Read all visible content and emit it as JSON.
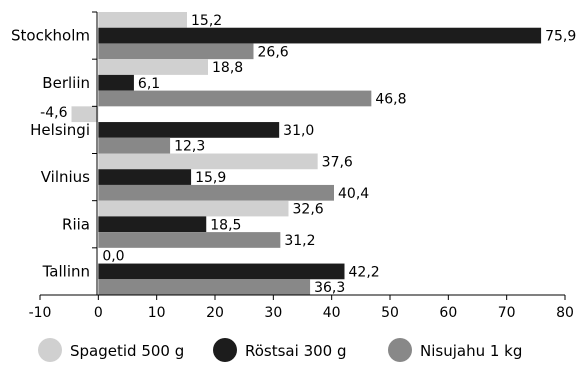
{
  "chart_data": {
    "type": "bar",
    "orientation": "horizontal",
    "categories": [
      "Stockholm",
      "Berliin",
      "Helsingi",
      "Vilnius",
      "Riia",
      "Tallinn"
    ],
    "series": [
      {
        "name": "Spagetid 500 g",
        "color": "#d0d0d0",
        "values": [
          15.2,
          18.8,
          -4.6,
          37.6,
          32.6,
          0.0
        ],
        "labels": [
          "15,2",
          "18,8",
          "-4,6",
          "37,6",
          "32,6",
          "0,0"
        ]
      },
      {
        "name": "Röstsai 300 g",
        "color": "#1c1c1c",
        "values": [
          75.9,
          6.1,
          31.0,
          15.9,
          18.5,
          42.2
        ],
        "labels": [
          "75,9",
          "6,1",
          "31,0",
          "15,9",
          "18,5",
          "42,2"
        ]
      },
      {
        "name": "Nisujahu 1 kg",
        "color": "#888888",
        "values": [
          26.6,
          46.8,
          12.3,
          40.4,
          31.2,
          36.3
        ],
        "labels": [
          "26,6",
          "46,8",
          "12,3",
          "40,4",
          "31,2",
          "36,3"
        ]
      }
    ],
    "xlim": [
      -10,
      80
    ],
    "xticks": [
      -10,
      0,
      10,
      20,
      30,
      40,
      50,
      60,
      70,
      80
    ],
    "xtick_labels": [
      "-10",
      "0",
      "10",
      "20",
      "30",
      "40",
      "50",
      "60",
      "70",
      "80"
    ],
    "title": "",
    "xlabel": "",
    "ylabel": "",
    "grid": false,
    "legend_position": "bottom"
  }
}
